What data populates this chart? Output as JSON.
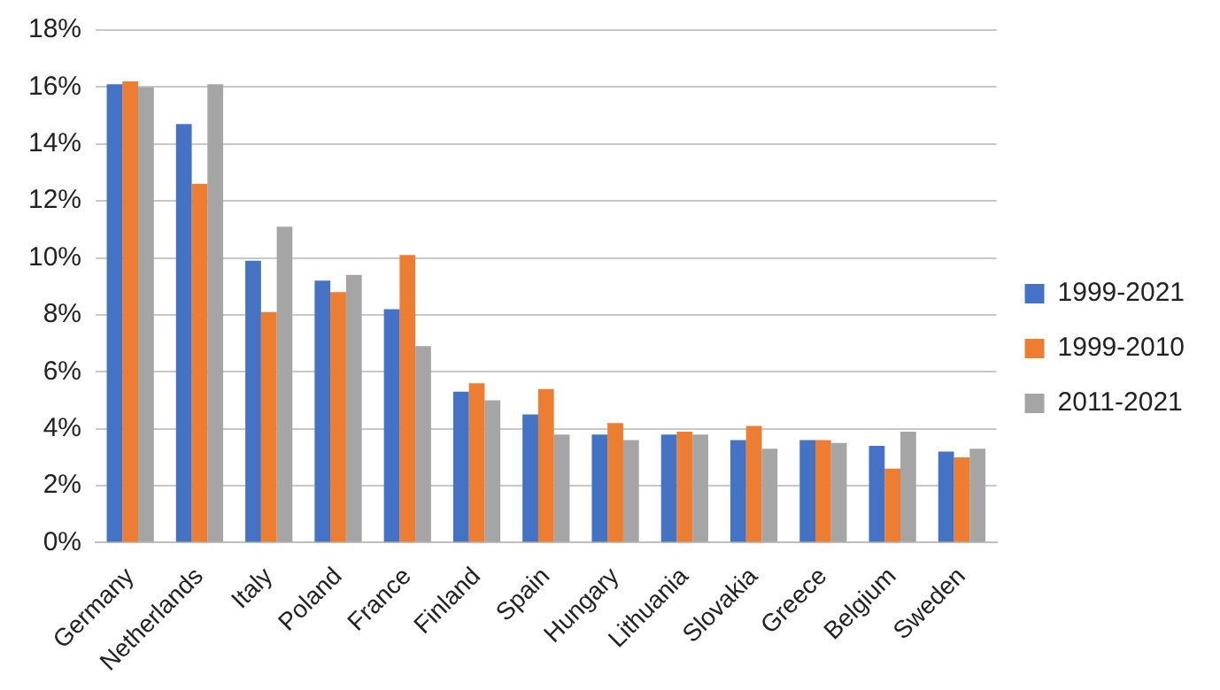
{
  "chart_data": {
    "type": "bar",
    "categories": [
      "Germany",
      "Netherlands",
      "Italy",
      "Poland",
      "France",
      "Finland",
      "Spain",
      "Hungary",
      "Lithuania",
      "Slovakia",
      "Greece",
      "Belgium",
      "Sweden"
    ],
    "series": [
      {
        "name": "1999-2021",
        "color": "#4472c4",
        "values": [
          16.1,
          14.7,
          9.9,
          9.2,
          8.2,
          5.3,
          4.5,
          3.8,
          3.8,
          3.6,
          3.6,
          3.4,
          3.2
        ]
      },
      {
        "name": "1999-2010",
        "color": "#ed7d31",
        "values": [
          16.2,
          12.6,
          8.1,
          8.8,
          10.1,
          5.6,
          5.4,
          4.2,
          3.9,
          4.1,
          3.6,
          2.6,
          3.0
        ]
      },
      {
        "name": "2011-2021",
        "color": "#a5a5a5",
        "values": [
          16.0,
          16.1,
          11.1,
          9.4,
          6.9,
          5.0,
          3.8,
          3.6,
          3.8,
          3.3,
          3.5,
          3.9,
          3.3
        ]
      }
    ],
    "ylim": [
      0,
      18
    ],
    "yticks": [
      {
        "value": 0,
        "label": "0%"
      },
      {
        "value": 2,
        "label": "2%"
      },
      {
        "value": 4,
        "label": "4%"
      },
      {
        "value": 6,
        "label": "6%"
      },
      {
        "value": 8,
        "label": "8%"
      },
      {
        "value": 10,
        "label": "10%"
      },
      {
        "value": 12,
        "label": "12%"
      },
      {
        "value": 14,
        "label": "14%"
      },
      {
        "value": 16,
        "label": "16%"
      },
      {
        "value": 18,
        "label": "18%"
      }
    ],
    "grid": "y",
    "legend": "right"
  }
}
